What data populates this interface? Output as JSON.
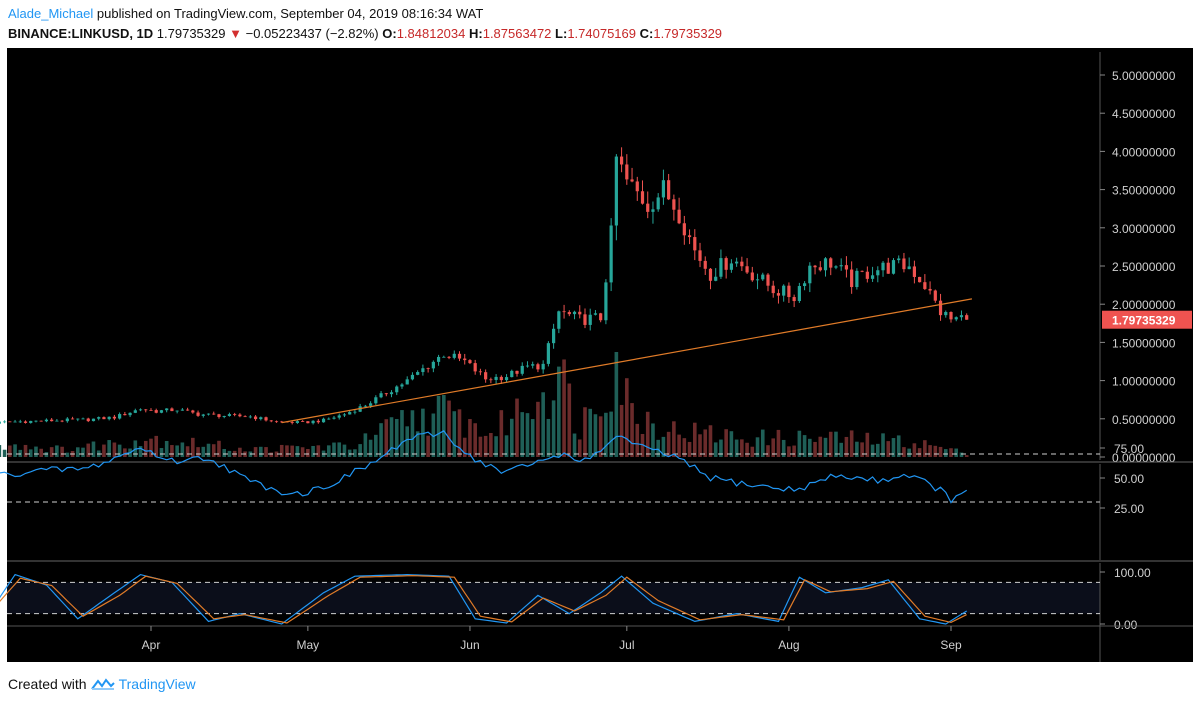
{
  "header": {
    "author": "Alade_Michael",
    "published": "published on TradingView.com, September 04, 2019 08:16:34 WAT",
    "symbol": "BINANCE:LINKUSD, 1D",
    "last": "1.79735329",
    "change": "−0.05223437 (−2.82%)",
    "o_label": "O:",
    "o_value": "1.84812034",
    "h_label": "H:",
    "h_value": "1.87563472",
    "l_label": "L:",
    "l_value": "1.74075169",
    "c_label": "C:",
    "c_value": "1.79735329"
  },
  "footer": {
    "created": "Created with",
    "brand": "TradingView"
  },
  "colors": {
    "background": "#000000",
    "up": "#26a69a",
    "down": "#ef5350",
    "up_volume": "#1f5f57",
    "down_volume": "#6b2b2b",
    "trendline": "#e07b28",
    "rsi": "#2196f3",
    "stoch_k": "#2196f3",
    "stoch_d": "#e07b28",
    "price_label": "#ef5350"
  },
  "chart_data": [
    {
      "type": "candlestick",
      "title": "BINANCE:LINKUSD, 1D",
      "xlabel": "",
      "ylabel": "",
      "ylim": [
        0,
        5.2
      ],
      "y_ticks": [
        "0.00000000",
        "0.50000000",
        "1.00000000",
        "1.50000000",
        "2.00000000",
        "2.50000000",
        "3.00000000",
        "3.50000000",
        "4.00000000",
        "4.50000000",
        "5.00000000"
      ],
      "x_ticks": [
        "Apr",
        "May",
        "Jun",
        "Jul",
        "Aug",
        "Sep"
      ],
      "last_price_label": "1.79735329",
      "trendline": {
        "start": [
          "2019-04-26",
          0.45
        ],
        "end": [
          "2019-09-05",
          2.07
        ]
      },
      "grid": false,
      "close_points": [
        [
          "2019-03-01",
          0.44
        ],
        [
          "2019-03-05",
          0.46
        ],
        [
          "2019-03-10",
          0.47
        ],
        [
          "2019-03-15",
          0.48
        ],
        [
          "2019-03-20",
          0.49
        ],
        [
          "2019-03-25",
          0.52
        ],
        [
          "2019-03-30",
          0.63
        ],
        [
          "2019-04-02",
          0.6
        ],
        [
          "2019-04-06",
          0.62
        ],
        [
          "2019-04-10",
          0.56
        ],
        [
          "2019-04-15",
          0.54
        ],
        [
          "2019-04-20",
          0.53
        ],
        [
          "2019-04-25",
          0.46
        ],
        [
          "2019-04-30",
          0.45
        ],
        [
          "2019-05-04",
          0.48
        ],
        [
          "2019-05-08",
          0.56
        ],
        [
          "2019-05-12",
          0.68
        ],
        [
          "2019-05-16",
          0.84
        ],
        [
          "2019-05-20",
          1.0
        ],
        [
          "2019-05-24",
          1.2
        ],
        [
          "2019-05-27",
          1.35
        ],
        [
          "2019-05-31",
          1.25
        ],
        [
          "2019-06-04",
          1.02
        ],
        [
          "2019-06-08",
          1.06
        ],
        [
          "2019-06-12",
          1.18
        ],
        [
          "2019-06-15",
          1.2
        ],
        [
          "2019-06-18",
          1.9
        ],
        [
          "2019-06-22",
          1.8
        ],
        [
          "2019-06-26",
          1.82
        ],
        [
          "2019-06-28",
          2.9
        ],
        [
          "2019-06-29",
          3.9
        ],
        [
          "2019-07-01",
          3.6
        ],
        [
          "2019-07-05",
          3.3
        ],
        [
          "2019-07-08",
          3.5
        ],
        [
          "2019-07-11",
          3.2
        ],
        [
          "2019-07-14",
          2.7
        ],
        [
          "2019-07-17",
          2.4
        ],
        [
          "2019-07-21",
          2.6
        ],
        [
          "2019-07-25",
          2.4
        ],
        [
          "2019-07-29",
          2.2
        ],
        [
          "2019-08-02",
          2.1
        ],
        [
          "2019-08-05",
          2.5
        ],
        [
          "2019-08-09",
          2.55
        ],
        [
          "2019-08-13",
          2.3
        ],
        [
          "2019-08-17",
          2.45
        ],
        [
          "2019-08-21",
          2.5
        ],
        [
          "2019-08-24",
          2.5
        ],
        [
          "2019-08-27",
          2.25
        ],
        [
          "2019-08-30",
          1.9
        ],
        [
          "2019-09-01",
          1.8
        ],
        [
          "2019-09-03",
          1.82
        ],
        [
          "2019-09-04",
          1.8
        ]
      ],
      "volume_points": [
        [
          "2019-03-01",
          0.2
        ],
        [
          "2019-03-15",
          0.1
        ],
        [
          "2019-04-01",
          0.25
        ],
        [
          "2019-04-20",
          0.1
        ],
        [
          "2019-05-10",
          0.15
        ],
        [
          "2019-05-20",
          0.5
        ],
        [
          "2019-05-27",
          0.6
        ],
        [
          "2019-06-05",
          0.3
        ],
        [
          "2019-06-15",
          0.9
        ],
        [
          "2019-06-18",
          1.15
        ],
        [
          "2019-06-22",
          0.4
        ],
        [
          "2019-06-29",
          1.3
        ],
        [
          "2019-07-02",
          0.6
        ],
        [
          "2019-07-10",
          0.35
        ],
        [
          "2019-07-25",
          0.25
        ],
        [
          "2019-08-10",
          0.25
        ],
        [
          "2019-08-25",
          0.2
        ],
        [
          "2019-09-04",
          0.05
        ]
      ]
    },
    {
      "type": "line",
      "title": "",
      "ylim": [
        20,
        100
      ],
      "y_ticks": [
        "25.00",
        "50.00",
        "75.00"
      ],
      "series": [
        {
          "values": [
            [
              "2019-03-01",
              51
            ],
            [
              "2019-03-10",
              56
            ],
            [
              "2019-03-20",
              58
            ],
            [
              "2019-03-30",
              75
            ],
            [
              "2019-04-05",
              64
            ],
            [
              "2019-04-12",
              67
            ],
            [
              "2019-04-20",
              47
            ],
            [
              "2019-04-26",
              39
            ],
            [
              "2019-04-30",
              37
            ],
            [
              "2019-05-06",
              46
            ],
            [
              "2019-05-14",
              64
            ],
            [
              "2019-05-20",
              82
            ],
            [
              "2019-05-27",
              88
            ],
            [
              "2019-06-01",
              68
            ],
            [
              "2019-06-07",
              55
            ],
            [
              "2019-06-12",
              60
            ],
            [
              "2019-06-18",
              70
            ],
            [
              "2019-06-24",
              64
            ],
            [
              "2019-06-29",
              86
            ],
            [
              "2019-07-04",
              75
            ],
            [
              "2019-07-10",
              68
            ],
            [
              "2019-07-17",
              50
            ],
            [
              "2019-07-25",
              44
            ],
            [
              "2019-08-02",
              40
            ],
            [
              "2019-08-10",
              52
            ],
            [
              "2019-08-18",
              48
            ],
            [
              "2019-08-24",
              53
            ],
            [
              "2019-08-30",
              40
            ],
            [
              "2019-09-01",
              32
            ],
            [
              "2019-09-04",
              37
            ]
          ]
        }
      ],
      "reference_levels": [
        70,
        30
      ]
    },
    {
      "type": "line",
      "title": "",
      "ylim": [
        -10,
        105
      ],
      "y_ticks": [
        "0.00",
        "100.00"
      ],
      "series": [
        {
          "values": [
            [
              "2019-03-01",
              20
            ],
            [
              "2019-03-06",
              95
            ],
            [
              "2019-03-12",
              75
            ],
            [
              "2019-03-18",
              10
            ],
            [
              "2019-03-25",
              60
            ],
            [
              "2019-03-30",
              95
            ],
            [
              "2019-04-05",
              80
            ],
            [
              "2019-04-12",
              5
            ],
            [
              "2019-04-18",
              20
            ],
            [
              "2019-04-26",
              0
            ],
            [
              "2019-05-04",
              60
            ],
            [
              "2019-05-10",
              92
            ],
            [
              "2019-05-20",
              95
            ],
            [
              "2019-05-28",
              92
            ],
            [
              "2019-06-02",
              10
            ],
            [
              "2019-06-08",
              2
            ],
            [
              "2019-06-14",
              55
            ],
            [
              "2019-06-20",
              20
            ],
            [
              "2019-06-26",
              60
            ],
            [
              "2019-06-30",
              92
            ],
            [
              "2019-07-06",
              40
            ],
            [
              "2019-07-14",
              5
            ],
            [
              "2019-07-22",
              20
            ],
            [
              "2019-07-30",
              5
            ],
            [
              "2019-08-03",
              90
            ],
            [
              "2019-08-08",
              60
            ],
            [
              "2019-08-15",
              70
            ],
            [
              "2019-08-20",
              85
            ],
            [
              "2019-08-26",
              10
            ],
            [
              "2019-08-31",
              0
            ],
            [
              "2019-09-04",
              25
            ]
          ]
        },
        {
          "values": [
            [
              "2019-03-01",
              20
            ],
            [
              "2019-03-07",
              88
            ],
            [
              "2019-03-13",
              74
            ],
            [
              "2019-03-19",
              15
            ],
            [
              "2019-03-26",
              55
            ],
            [
              "2019-03-31",
              92
            ],
            [
              "2019-04-06",
              78
            ],
            [
              "2019-04-13",
              10
            ],
            [
              "2019-04-19",
              18
            ],
            [
              "2019-04-27",
              2
            ],
            [
              "2019-05-05",
              55
            ],
            [
              "2019-05-11",
              90
            ],
            [
              "2019-05-21",
              93
            ],
            [
              "2019-05-29",
              90
            ],
            [
              "2019-06-03",
              15
            ],
            [
              "2019-06-09",
              4
            ],
            [
              "2019-06-15",
              50
            ],
            [
              "2019-06-21",
              25
            ],
            [
              "2019-06-27",
              55
            ],
            [
              "2019-07-01",
              90
            ],
            [
              "2019-07-07",
              45
            ],
            [
              "2019-07-15",
              8
            ],
            [
              "2019-07-23",
              18
            ],
            [
              "2019-07-31",
              8
            ],
            [
              "2019-08-04",
              85
            ],
            [
              "2019-08-09",
              62
            ],
            [
              "2019-08-16",
              68
            ],
            [
              "2019-08-21",
              82
            ],
            [
              "2019-08-27",
              15
            ],
            [
              "2019-09-01",
              3
            ],
            [
              "2019-09-04",
              18
            ]
          ]
        }
      ],
      "reference_levels": [
        80,
        20
      ]
    }
  ]
}
